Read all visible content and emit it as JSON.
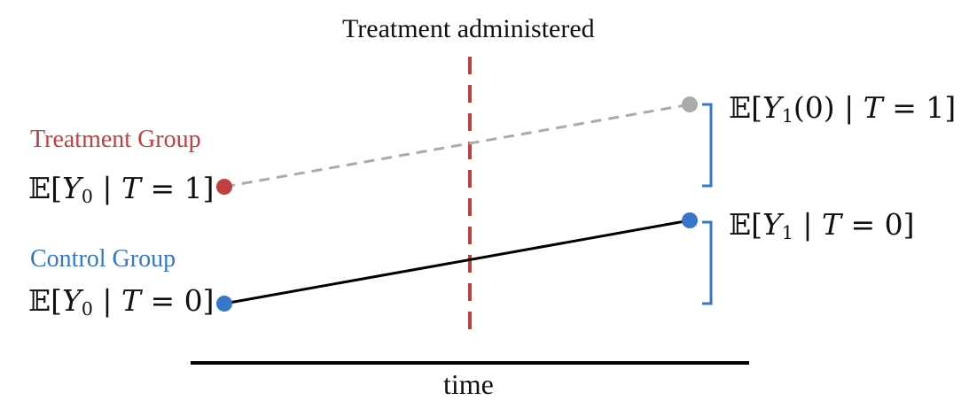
{
  "title": "Treatment administered",
  "treatment_group": {
    "label": "Treatment Group",
    "expectation": {
      "prefix": "𝔼[",
      "var": "Y",
      "sub": "0",
      "cond": " | ",
      "tvar": "T",
      "rest": " = 1]"
    }
  },
  "control_group": {
    "label": "Control Group",
    "expectation": {
      "prefix": "𝔼[",
      "var": "Y",
      "sub": "0",
      "cond": " | ",
      "tvar": "T",
      "rest": " = 0]"
    }
  },
  "counterfactual": {
    "expectation": {
      "prefix": "𝔼[",
      "var": "Y",
      "sub": "1",
      "mid": "(0) | ",
      "tvar": "T",
      "rest": " = 1]"
    }
  },
  "control_after": {
    "expectation": {
      "prefix": "𝔼[",
      "var": "Y",
      "sub": "1",
      "cond": " | ",
      "tvar": "T",
      "rest": " = 0]"
    }
  },
  "axis_label": "time",
  "colors": {
    "treatment": "#c0403f",
    "control": "#3677c9",
    "counterfactual": "#aaaaaa",
    "line": "#000000",
    "bracket": "#3677c9",
    "divider": "#c0403f"
  }
}
